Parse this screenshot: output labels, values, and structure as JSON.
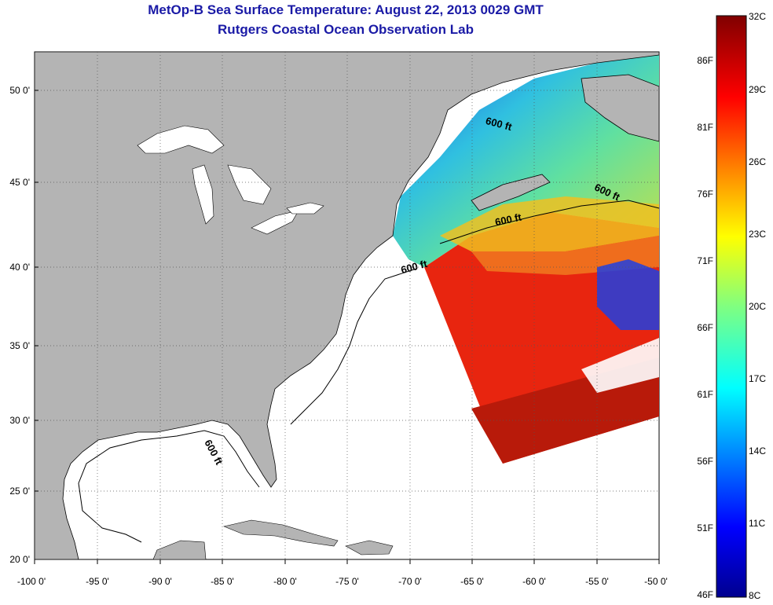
{
  "title": "MetOp-B Sea Surface Temperature:  August 22, 2013 0029 GMT",
  "subtitle": "Rutgers Coastal Ocean Observation Lab",
  "lat_ticks": [
    "50 0'",
    "45 0'",
    "40 0'",
    "35 0'",
    "30 0'",
    "25 0'",
    "20 0'"
  ],
  "lon_ticks": [
    "-100 0'",
    "-95 0'",
    "-90 0'",
    "-85 0'",
    "-80 0'",
    "-75 0'",
    "-70 0'",
    "-65 0'",
    "-60 0'",
    "-55 0'",
    "-50 0'"
  ],
  "colorbar": {
    "fahrenheit_labels": [
      "86F",
      "81F",
      "76F",
      "71F",
      "66F",
      "61F",
      "56F",
      "51F",
      "46F"
    ],
    "celsius_labels": [
      "32C",
      "29C",
      "26C",
      "23C",
      "20C",
      "17C",
      "14C",
      "11C",
      "8C"
    ],
    "range_c": [
      8,
      32
    ]
  },
  "contour_label": "600 ft",
  "colors": {
    "title": "#1a1aa6",
    "land": "#b4b4b4",
    "ocean_no_data": "#ffffff"
  },
  "extent": {
    "lon": [
      -100,
      -50
    ],
    "lat": [
      20,
      52.5
    ]
  }
}
